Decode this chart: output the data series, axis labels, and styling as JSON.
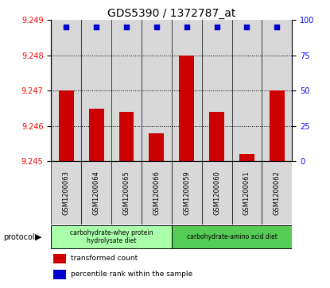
{
  "title": "GDS5390 / 1372787_at",
  "samples": [
    "GSM1200063",
    "GSM1200064",
    "GSM1200065",
    "GSM1200066",
    "GSM1200059",
    "GSM1200060",
    "GSM1200061",
    "GSM1200062"
  ],
  "red_values": [
    9.247,
    9.2465,
    9.2464,
    9.2458,
    9.248,
    9.2464,
    9.2452,
    9.247
  ],
  "blue_values": [
    95,
    95,
    95,
    95,
    95,
    95,
    95,
    95
  ],
  "ylim_left": [
    9.245,
    9.249
  ],
  "ylim_right": [
    0,
    100
  ],
  "yticks_left": [
    9.245,
    9.246,
    9.247,
    9.248,
    9.249
  ],
  "yticks_right": [
    0,
    25,
    50,
    75,
    100
  ],
  "group1_label": "carbohydrate-whey protein\nhydrolysate diet",
  "group2_label": "carbohydrate-amino acid diet",
  "group1_color": "#aaffaa",
  "group2_color": "#55cc55",
  "legend_red": "transformed count",
  "legend_blue": "percentile rank within the sample",
  "protocol_label": "protocol",
  "bar_color": "#cc0000",
  "blue_marker_color": "#0000cc",
  "col_bg": "#d8d8d8",
  "plot_bg": "#ffffff",
  "bar_width": 0.5,
  "title_fontsize": 10,
  "tick_fontsize": 7,
  "sample_fontsize": 6
}
